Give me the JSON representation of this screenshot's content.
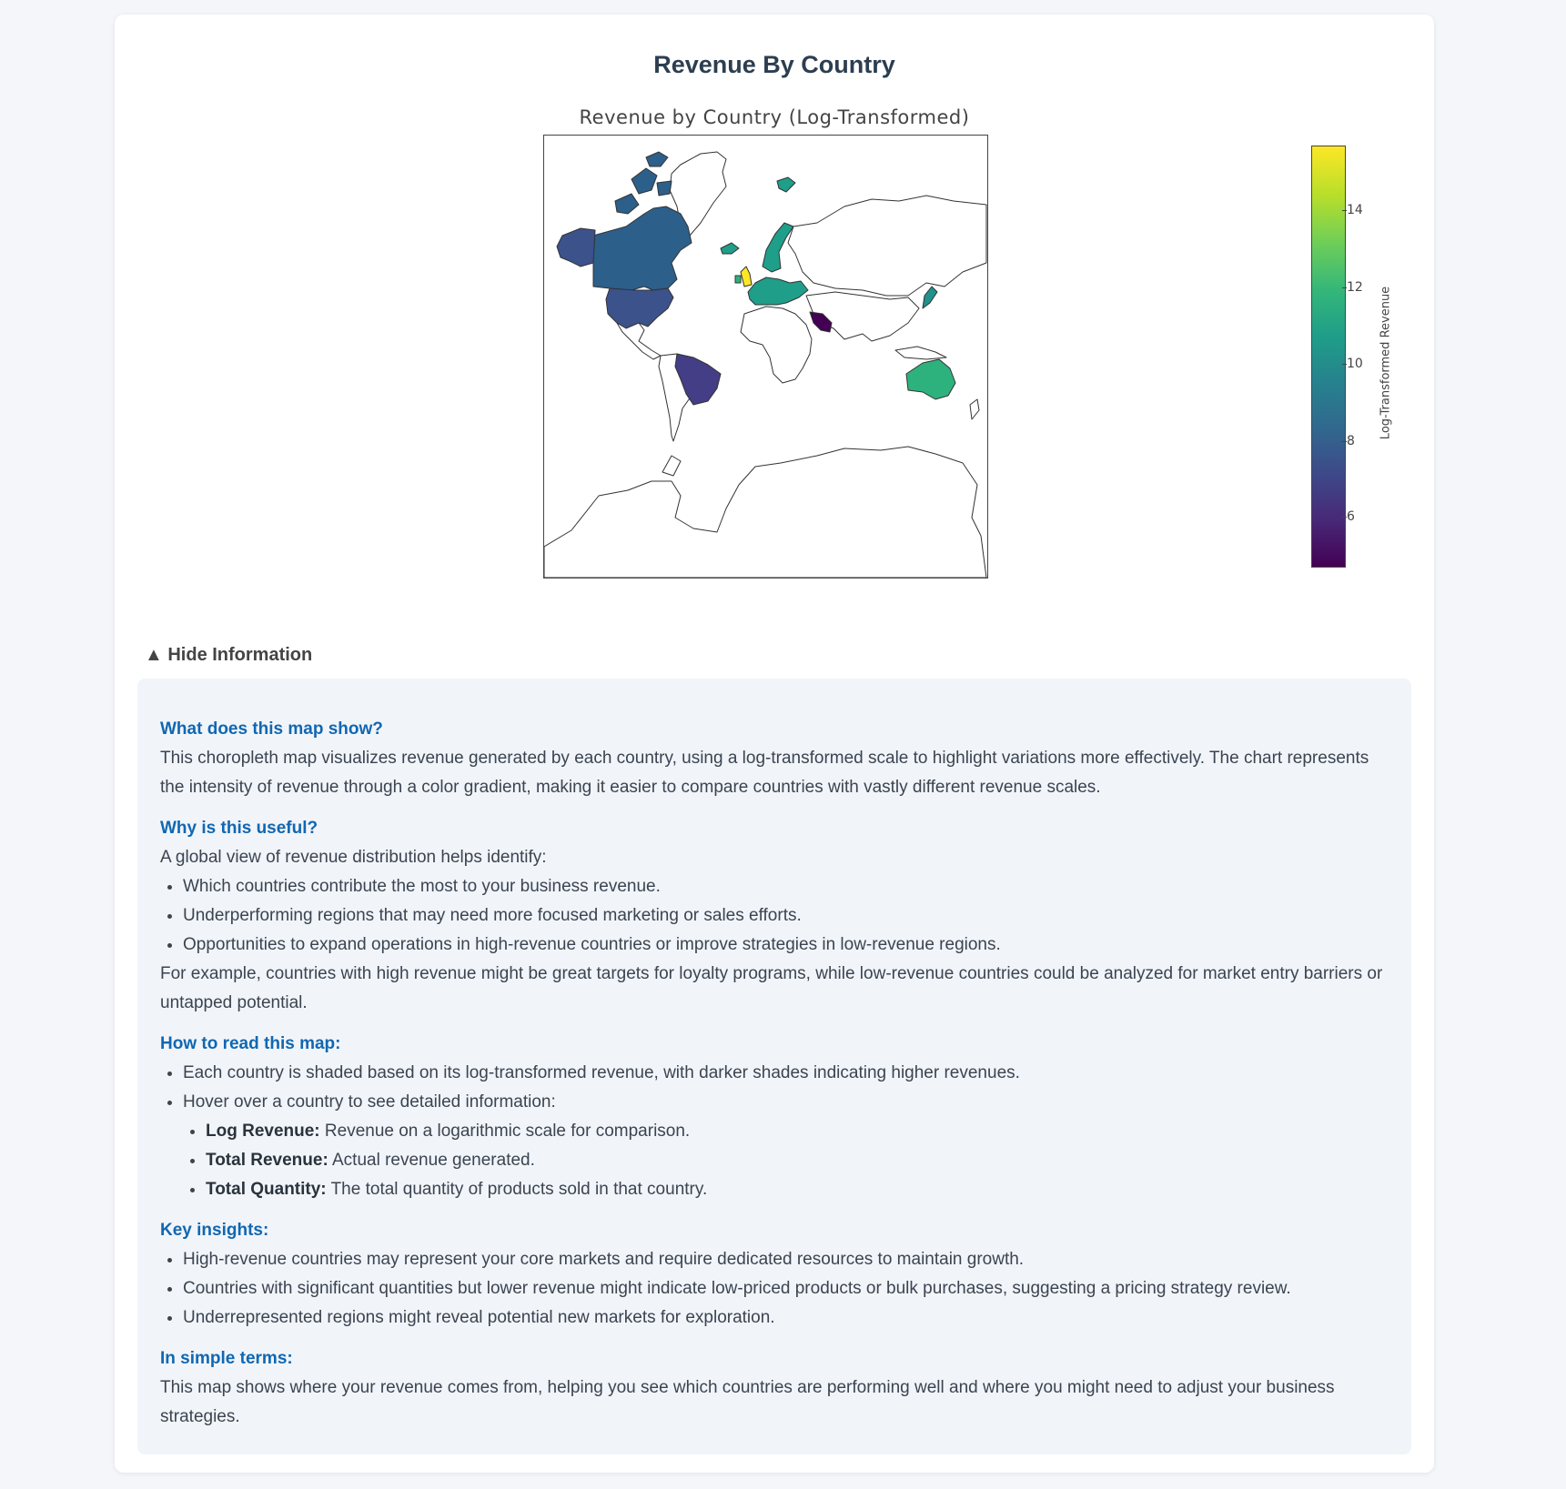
{
  "card": {
    "title": "Revenue By Country"
  },
  "map": {
    "title": "Revenue by Country (Log-Transformed)",
    "projection": "mercator",
    "colorscale": "viridis",
    "colorbar": {
      "title": "Log-Transformed Revenue",
      "range": [
        5.0,
        15.9
      ],
      "ticks": [
        "6",
        "8",
        "10",
        "12",
        "14"
      ]
    },
    "regions": [
      {
        "name": "United Kingdom",
        "color": "#fde725"
      },
      {
        "name": "Saudi Arabia",
        "color": "#440154"
      },
      {
        "name": "Australia",
        "color": "#2db27d"
      },
      {
        "name": "Scandinavia / Europe",
        "color": "#1f9e89"
      },
      {
        "name": "United States",
        "color": "#3b528b"
      },
      {
        "name": "Canada",
        "color": "#2c5f8a"
      },
      {
        "name": "Brazil",
        "color": "#433e85"
      },
      {
        "name": "Japan",
        "color": "#21918c"
      },
      {
        "name": "Iceland",
        "color": "#1f9e89"
      }
    ]
  },
  "info": {
    "toggle_label": "▲ Hide Information",
    "s1": {
      "heading": "What does this map show?",
      "text": "This choropleth map visualizes revenue generated by each country, using a log-transformed scale to highlight variations more effectively. The chart represents the intensity of revenue through a color gradient, making it easier to compare countries with vastly different revenue scales."
    },
    "s2": {
      "heading": "Why is this useful?",
      "intro": "A global view of revenue distribution helps identify:",
      "bullets": [
        "Which countries contribute the most to your business revenue.",
        "Underperforming regions that may need more focused marketing or sales efforts.",
        "Opportunities to expand operations in high-revenue countries or improve strategies in low-revenue regions."
      ],
      "outro": "For example, countries with high revenue might be great targets for loyalty programs, while low-revenue countries could be analyzed for market entry barriers or untapped potential."
    },
    "s3": {
      "heading": "How to read this map:",
      "b1": "Each country is shaded based on its log-transformed revenue, with darker shades indicating higher revenues.",
      "b2": "Hover over a country to see detailed information:",
      "sub": [
        {
          "label": "Log Revenue:",
          "text": " Revenue on a logarithmic scale for comparison."
        },
        {
          "label": "Total Revenue:",
          "text": " Actual revenue generated."
        },
        {
          "label": "Total Quantity:",
          "text": " The total quantity of products sold in that country."
        }
      ]
    },
    "s4": {
      "heading": "Key insights:",
      "bullets": [
        "High-revenue countries may represent your core markets and require dedicated resources to maintain growth.",
        "Countries with significant quantities but lower revenue might indicate low-priced products or bulk purchases, suggesting a pricing strategy review.",
        "Underrepresented regions might reveal potential new markets for exploration."
      ]
    },
    "s5": {
      "heading": "In simple terms:",
      "text": "This map shows where your revenue comes from, helping you see which countries are performing well and where you might need to adjust your business strategies."
    }
  }
}
